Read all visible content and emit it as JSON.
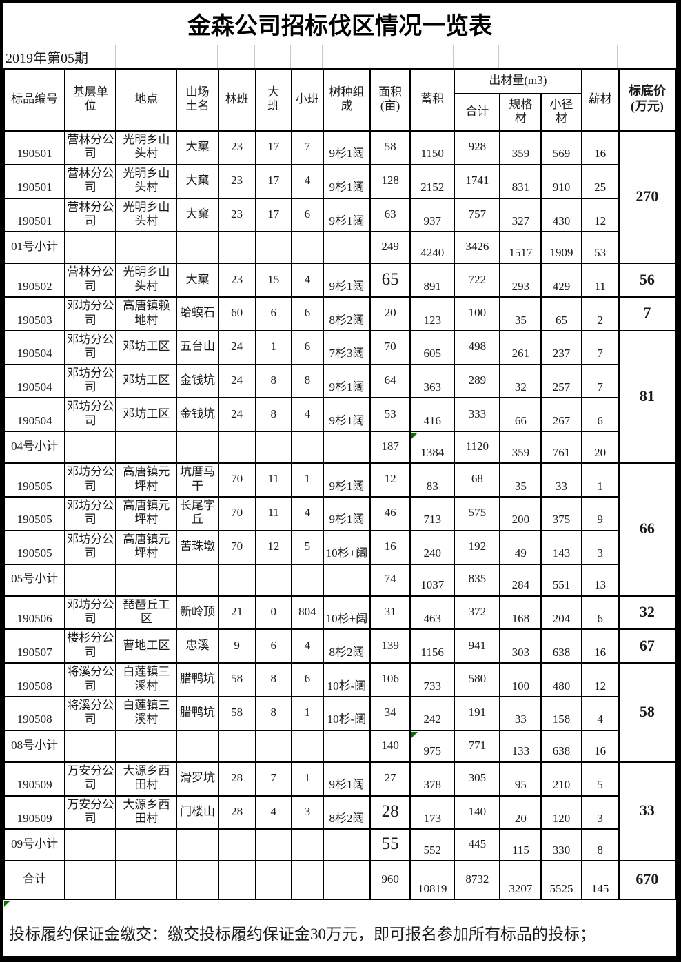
{
  "document": {
    "title": "金森公司招标伐区情况一览表",
    "period": "2019年第05期",
    "footer_note": "投标履约保证金缴交：缴交投标履约保证金30万元，即可报名参加所有标品的投标；"
  },
  "colors": {
    "grid": "#000000",
    "light_grid": "#c9c9c9",
    "error_marker_green": "#047104"
  },
  "table": {
    "header": {
      "left": [
        "标品编号",
        "基层单\n位",
        "地点",
        "山场\n土名",
        "林班",
        "大\n班",
        "小班",
        "树种组\n成",
        "面积\n(亩)",
        "蓄积"
      ],
      "group": {
        "label": "出材量(m3)",
        "children": [
          "合计",
          "规格\n材",
          "小径\n材"
        ]
      },
      "right": [
        "薪材",
        "标底价\n(万元)"
      ]
    },
    "rows": [
      {
        "cells": [
          "190501",
          "营林分公司",
          "光明乡山头村",
          "大窠",
          "23",
          "17",
          "7",
          "9杉1阔",
          "58",
          "1150",
          "928",
          "359",
          "569",
          "16"
        ],
        "price": "270",
        "price_span": 4
      },
      {
        "cells": [
          "190501",
          "营林分公司",
          "光明乡山头村",
          "大窠",
          "23",
          "17",
          "4",
          "9杉1阔",
          "128",
          "2152",
          "1741",
          "831",
          "910",
          "25"
        ]
      },
      {
        "cells": [
          "190501",
          "营林分公司",
          "光明乡山头村",
          "大窠",
          "23",
          "17",
          "6",
          "9杉1阔",
          "63",
          "937",
          "757",
          "327",
          "430",
          "12"
        ]
      },
      {
        "cells": [
          "01号小计",
          "",
          "",
          "",
          "",
          "",
          "",
          "",
          "249",
          "4240",
          "3426",
          "1517",
          "1909",
          "53"
        ]
      },
      {
        "cells": [
          "190502",
          "营林分公司",
          "光明乡山头村",
          "大窠",
          "23",
          "15",
          "4",
          "9杉1阔",
          "65",
          "891",
          "722",
          "293",
          "429",
          "11"
        ],
        "price": "56",
        "price_span": 1,
        "big_cols": [
          8
        ]
      },
      {
        "cells": [
          "190503",
          "邓坊分公司",
          "高唐镇赖地村",
          "蛤蟆石",
          "60",
          "6",
          "6",
          "8杉2阔",
          "20",
          "123",
          "100",
          "35",
          "65",
          "2"
        ],
        "price": "7",
        "price_span": 1
      },
      {
        "cells": [
          "190504",
          "邓坊分公司",
          "邓坊工区",
          "五台山",
          "24",
          "1",
          "6",
          "7杉3阔",
          "70",
          "605",
          "498",
          "261",
          "237",
          "7"
        ],
        "price": "81",
        "price_span": 4
      },
      {
        "cells": [
          "190504",
          "邓坊分公司",
          "邓坊工区",
          "金钱坑",
          "24",
          "8",
          "8",
          "9杉1阔",
          "64",
          "363",
          "289",
          "32",
          "257",
          "7"
        ]
      },
      {
        "cells": [
          "190504",
          "邓坊分公司",
          "邓坊工区",
          "金钱坑",
          "24",
          "8",
          "4",
          "9杉1阔",
          "53",
          "416",
          "333",
          "66",
          "267",
          "6"
        ]
      },
      {
        "cells": [
          "04号小计",
          "",
          "",
          "",
          "",
          "",
          "",
          "",
          "187",
          "1384",
          "1120",
          "359",
          "761",
          "20"
        ],
        "marker_cols": [
          9
        ]
      },
      {
        "cells": [
          "190505",
          "邓坊分公司",
          "高唐镇元坪村",
          "坑厝马干",
          "70",
          "11",
          "1",
          "9杉1阔",
          "12",
          "83",
          "68",
          "35",
          "33",
          "1"
        ],
        "price": "66",
        "price_span": 4
      },
      {
        "cells": [
          "190505",
          "邓坊分公司",
          "高唐镇元坪村",
          "长尾字丘",
          "70",
          "11",
          "4",
          "9杉1阔",
          "46",
          "713",
          "575",
          "200",
          "375",
          "9"
        ]
      },
      {
        "cells": [
          "190505",
          "邓坊分公司",
          "高唐镇元坪村",
          "苦珠墩",
          "70",
          "12",
          "5",
          "10杉+阔",
          "16",
          "240",
          "192",
          "49",
          "143",
          "3"
        ]
      },
      {
        "cells": [
          "05号小计",
          "",
          "",
          "",
          "",
          "",
          "",
          "",
          "74",
          "1037",
          "835",
          "284",
          "551",
          "13"
        ]
      },
      {
        "cells": [
          "190506",
          "邓坊分公司",
          "琵琶丘工区",
          "新岭顶",
          "21",
          "0",
          "804",
          "10杉+阔",
          "31",
          "463",
          "372",
          "168",
          "204",
          "6"
        ],
        "price": "32",
        "price_span": 1
      },
      {
        "cells": [
          "190507",
          "楼杉分公司",
          "曹地工区",
          "忠溪",
          "9",
          "6",
          "4",
          "8杉2阔",
          "139",
          "1156",
          "941",
          "303",
          "638",
          "16"
        ],
        "price": "67",
        "price_span": 1
      },
      {
        "cells": [
          "190508",
          "将溪分公司",
          "白莲镇三溪村",
          "腊鸭坑",
          "58",
          "8",
          "6",
          "10杉-阔",
          "106",
          "733",
          "580",
          "100",
          "480",
          "12"
        ],
        "price": "58",
        "price_span": 3
      },
      {
        "cells": [
          "190508",
          "将溪分公司",
          "白莲镇三溪村",
          "腊鸭坑",
          "58",
          "8",
          "1",
          "10杉-阔",
          "34",
          "242",
          "191",
          "33",
          "158",
          "4"
        ]
      },
      {
        "cells": [
          "08号小计",
          "",
          "",
          "",
          "",
          "",
          "",
          "",
          "140",
          "975",
          "771",
          "133",
          "638",
          "16"
        ],
        "marker_cols": [
          9
        ]
      },
      {
        "cells": [
          "190509",
          "万安分公司",
          "大源乡西田村",
          "滑罗坑",
          "28",
          "7",
          "1",
          "9杉1阔",
          "27",
          "378",
          "305",
          "95",
          "210",
          "5"
        ],
        "price": "33",
        "price_span": 3
      },
      {
        "cells": [
          "190509",
          "万安分公司",
          "大源乡西田村",
          "门楼山",
          "28",
          "4",
          "3",
          "8杉2阔",
          "28",
          "173",
          "140",
          "20",
          "120",
          "3"
        ],
        "big_cols": [
          8
        ]
      },
      {
        "cells": [
          "09号小计",
          "",
          "",
          "",
          "",
          "",
          "",
          "",
          "55",
          "552",
          "445",
          "115",
          "330",
          "8"
        ],
        "big_cols": [
          8
        ]
      },
      {
        "cells": [
          "合计",
          "",
          "",
          "",
          "",
          "",
          "",
          "",
          "960",
          "10819",
          "8732",
          "3207",
          "5525",
          "145"
        ],
        "price": "670",
        "price_span": 1,
        "tall": true
      }
    ]
  }
}
